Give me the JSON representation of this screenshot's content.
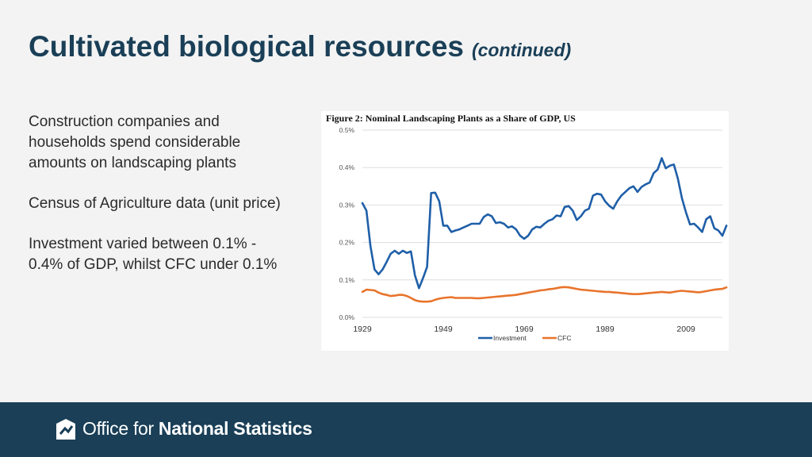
{
  "slide": {
    "title": "Cultivated biological resources",
    "subtitle": "(continued)"
  },
  "bullets": [
    "Construction companies and households spend considerable amounts on landscaping plants",
    "Census of Agriculture data (unit price)",
    "Investment varied between 0.1% - 0.4% of GDP, whilst CFC under 0.1%"
  ],
  "footer": {
    "logo_light": "Office for",
    "logo_strong": "National Statistics"
  },
  "colors": {
    "title": "#1a3f57",
    "footer_bg": "#1a3f57",
    "investment": "#1f5fa8",
    "cfc": "#e8742c"
  },
  "chart_data": {
    "type": "line",
    "title": "Figure 2: Nominal Landscaping Plants as a Share of GDP, US",
    "xlabel": "",
    "ylabel": "",
    "xlim": [
      1929,
      2018
    ],
    "ylim": [
      0,
      0.5
    ],
    "x_ticks": [
      1929,
      1949,
      1969,
      1989,
      2009
    ],
    "x_tick_labels": [
      "1929",
      "1949",
      "1969",
      "1989",
      "2009"
    ],
    "y_ticks": [
      0,
      0.1,
      0.2,
      0.3,
      0.4,
      0.5
    ],
    "y_tick_labels": [
      "0.0%",
      "0.1%",
      "0.2%",
      "0.3%",
      "0.4%",
      "0.5%"
    ],
    "grid": "horizontal",
    "legend": "bottom",
    "series": [
      {
        "name": "Investment",
        "color": "#1f5fa8",
        "points": [
          [
            1929,
            0.305
          ],
          [
            1930,
            0.285
          ],
          [
            1931,
            0.19
          ],
          [
            1932,
            0.128
          ],
          [
            1933,
            0.115
          ],
          [
            1934,
            0.128
          ],
          [
            1935,
            0.148
          ],
          [
            1936,
            0.17
          ],
          [
            1937,
            0.178
          ],
          [
            1938,
            0.17
          ],
          [
            1939,
            0.178
          ],
          [
            1940,
            0.172
          ],
          [
            1941,
            0.176
          ],
          [
            1942,
            0.112
          ],
          [
            1943,
            0.078
          ],
          [
            1944,
            0.105
          ],
          [
            1945,
            0.135
          ],
          [
            1946,
            0.332
          ],
          [
            1947,
            0.333
          ],
          [
            1948,
            0.31
          ],
          [
            1949,
            0.245
          ],
          [
            1950,
            0.245
          ],
          [
            1951,
            0.228
          ],
          [
            1952,
            0.232
          ],
          [
            1953,
            0.235
          ],
          [
            1954,
            0.24
          ],
          [
            1955,
            0.245
          ],
          [
            1956,
            0.25
          ],
          [
            1957,
            0.25
          ],
          [
            1958,
            0.25
          ],
          [
            1959,
            0.268
          ],
          [
            1960,
            0.275
          ],
          [
            1961,
            0.27
          ],
          [
            1962,
            0.252
          ],
          [
            1963,
            0.254
          ],
          [
            1964,
            0.25
          ],
          [
            1965,
            0.24
          ],
          [
            1966,
            0.243
          ],
          [
            1967,
            0.235
          ],
          [
            1968,
            0.218
          ],
          [
            1969,
            0.21
          ],
          [
            1970,
            0.218
          ],
          [
            1971,
            0.235
          ],
          [
            1972,
            0.242
          ],
          [
            1973,
            0.24
          ],
          [
            1974,
            0.25
          ],
          [
            1975,
            0.258
          ],
          [
            1976,
            0.262
          ],
          [
            1977,
            0.272
          ],
          [
            1978,
            0.27
          ],
          [
            1979,
            0.295
          ],
          [
            1980,
            0.297
          ],
          [
            1981,
            0.285
          ],
          [
            1982,
            0.26
          ],
          [
            1983,
            0.27
          ],
          [
            1984,
            0.285
          ],
          [
            1985,
            0.29
          ],
          [
            1986,
            0.325
          ],
          [
            1987,
            0.33
          ],
          [
            1988,
            0.328
          ],
          [
            1989,
            0.31
          ],
          [
            1990,
            0.298
          ],
          [
            1991,
            0.29
          ],
          [
            1992,
            0.31
          ],
          [
            1993,
            0.325
          ],
          [
            1994,
            0.335
          ],
          [
            1995,
            0.345
          ],
          [
            1996,
            0.35
          ],
          [
            1997,
            0.335
          ],
          [
            1998,
            0.348
          ],
          [
            1999,
            0.355
          ],
          [
            2000,
            0.36
          ],
          [
            2001,
            0.385
          ],
          [
            2002,
            0.395
          ],
          [
            2003,
            0.425
          ],
          [
            2004,
            0.398
          ],
          [
            2005,
            0.405
          ],
          [
            2006,
            0.408
          ],
          [
            2007,
            0.37
          ],
          [
            2008,
            0.318
          ],
          [
            2009,
            0.28
          ],
          [
            2010,
            0.248
          ],
          [
            2011,
            0.25
          ],
          [
            2012,
            0.24
          ],
          [
            2013,
            0.228
          ],
          [
            2014,
            0.262
          ],
          [
            2015,
            0.27
          ],
          [
            2016,
            0.238
          ],
          [
            2017,
            0.232
          ],
          [
            2018,
            0.218
          ],
          [
            2019,
            0.245
          ]
        ]
      },
      {
        "name": "CFC",
        "color": "#e8742c",
        "points": [
          [
            1929,
            0.068
          ],
          [
            1930,
            0.074
          ],
          [
            1931,
            0.073
          ],
          [
            1932,
            0.072
          ],
          [
            1933,
            0.066
          ],
          [
            1934,
            0.062
          ],
          [
            1935,
            0.06
          ],
          [
            1936,
            0.057
          ],
          [
            1937,
            0.058
          ],
          [
            1938,
            0.06
          ],
          [
            1939,
            0.06
          ],
          [
            1940,
            0.057
          ],
          [
            1941,
            0.052
          ],
          [
            1942,
            0.046
          ],
          [
            1943,
            0.043
          ],
          [
            1944,
            0.042
          ],
          [
            1945,
            0.042
          ],
          [
            1946,
            0.043
          ],
          [
            1947,
            0.047
          ],
          [
            1948,
            0.05
          ],
          [
            1949,
            0.052
          ],
          [
            1950,
            0.053
          ],
          [
            1951,
            0.054
          ],
          [
            1952,
            0.052
          ],
          [
            1953,
            0.052
          ],
          [
            1954,
            0.052
          ],
          [
            1955,
            0.052
          ],
          [
            1956,
            0.052
          ],
          [
            1957,
            0.051
          ],
          [
            1958,
            0.051
          ],
          [
            1959,
            0.052
          ],
          [
            1960,
            0.053
          ],
          [
            1961,
            0.054
          ],
          [
            1962,
            0.055
          ],
          [
            1963,
            0.056
          ],
          [
            1964,
            0.057
          ],
          [
            1965,
            0.058
          ],
          [
            1966,
            0.059
          ],
          [
            1967,
            0.06
          ],
          [
            1968,
            0.062
          ],
          [
            1969,
            0.064
          ],
          [
            1970,
            0.066
          ],
          [
            1971,
            0.068
          ],
          [
            1972,
            0.07
          ],
          [
            1973,
            0.072
          ],
          [
            1974,
            0.073
          ],
          [
            1975,
            0.075
          ],
          [
            1976,
            0.076
          ],
          [
            1977,
            0.078
          ],
          [
            1978,
            0.08
          ],
          [
            1979,
            0.081
          ],
          [
            1980,
            0.08
          ],
          [
            1981,
            0.078
          ],
          [
            1982,
            0.076
          ],
          [
            1983,
            0.074
          ],
          [
            1984,
            0.073
          ],
          [
            1985,
            0.072
          ],
          [
            1986,
            0.071
          ],
          [
            1987,
            0.07
          ],
          [
            1988,
            0.069
          ],
          [
            1989,
            0.068
          ],
          [
            1990,
            0.068
          ],
          [
            1991,
            0.067
          ],
          [
            1992,
            0.066
          ],
          [
            1993,
            0.065
          ],
          [
            1994,
            0.064
          ],
          [
            1995,
            0.063
          ],
          [
            1996,
            0.062
          ],
          [
            1997,
            0.062
          ],
          [
            1998,
            0.063
          ],
          [
            1999,
            0.064
          ],
          [
            2000,
            0.065
          ],
          [
            2001,
            0.066
          ],
          [
            2002,
            0.067
          ],
          [
            2003,
            0.068
          ],
          [
            2004,
            0.067
          ],
          [
            2005,
            0.066
          ],
          [
            2006,
            0.068
          ],
          [
            2007,
            0.07
          ],
          [
            2008,
            0.071
          ],
          [
            2009,
            0.07
          ],
          [
            2010,
            0.069
          ],
          [
            2011,
            0.068
          ],
          [
            2012,
            0.067
          ],
          [
            2013,
            0.068
          ],
          [
            2014,
            0.07
          ],
          [
            2015,
            0.072
          ],
          [
            2016,
            0.074
          ],
          [
            2017,
            0.075
          ],
          [
            2018,
            0.076
          ],
          [
            2019,
            0.08
          ]
        ]
      }
    ]
  }
}
